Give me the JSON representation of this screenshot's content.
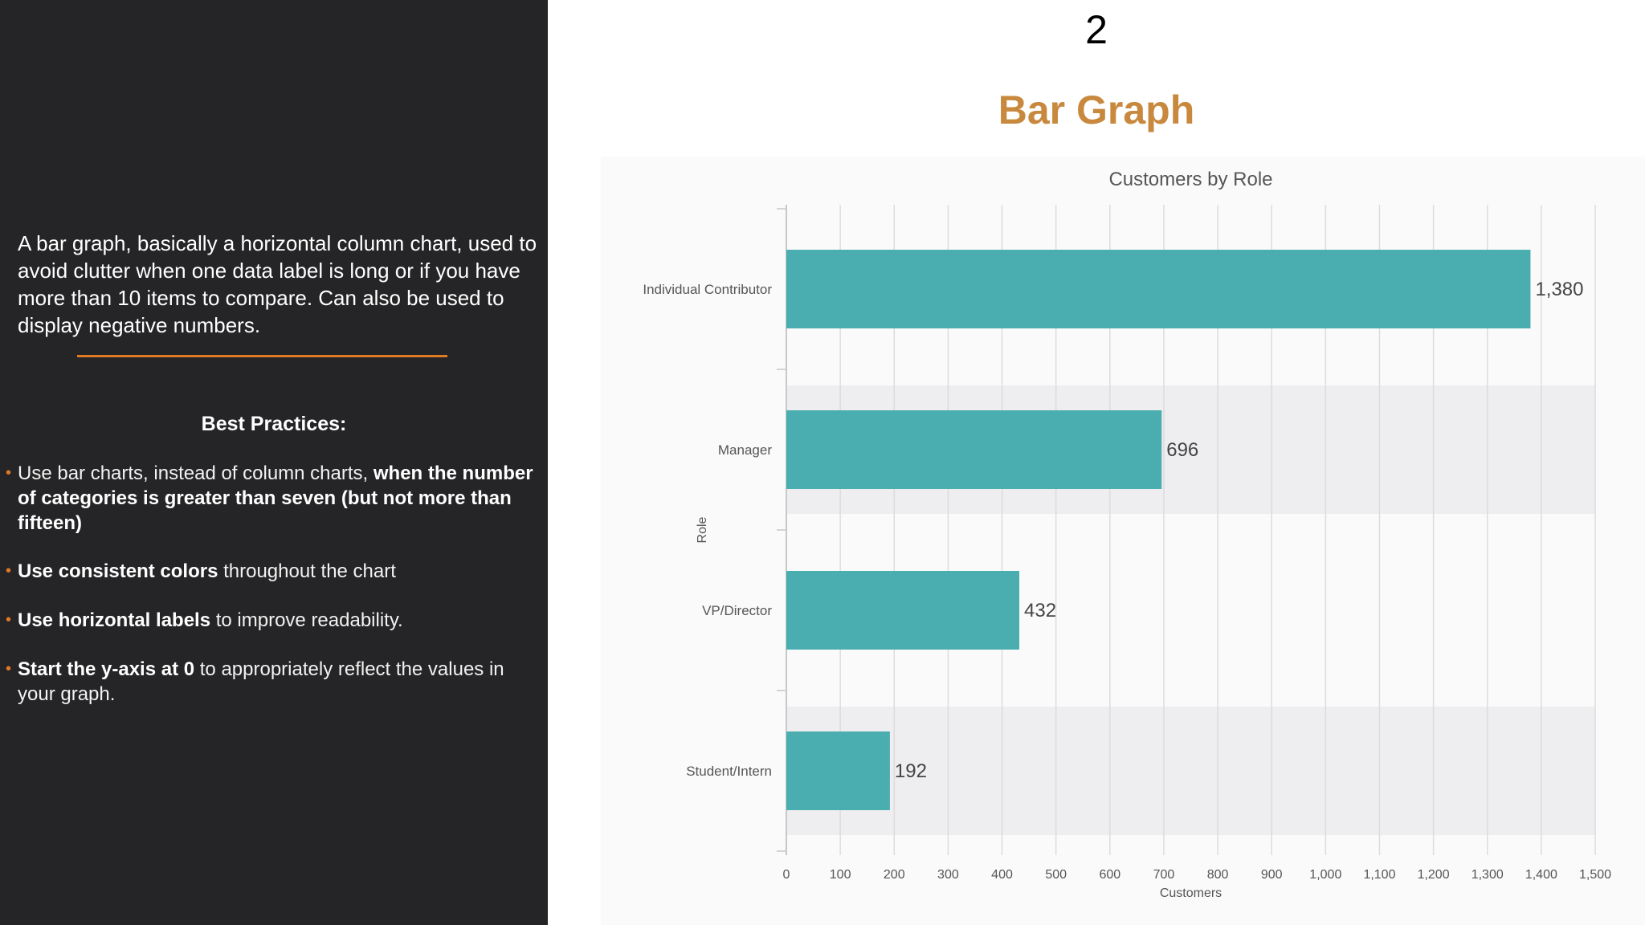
{
  "left_panel": {
    "intro": "A bar graph, basically a horizontal column chart, used to avoid clutter when one data label is long or if you have more than 10 items to compare. Can also be used to display negative numbers.",
    "best_practices_title": "Best Practices:",
    "bullets": [
      {
        "bold": "",
        "text": "Use bar charts, instead of column charts, ",
        "bold_after": "when the number of categories is greater than seven (but not more than fifteen)"
      },
      {
        "bold": "Use consistent colors",
        "text": " throughout the chart",
        "bold_after": ""
      },
      {
        "bold": "Use horizontal labels",
        "text": " to improve readability.",
        "bold_after": ""
      },
      {
        "bold": "Start the y-axis at 0",
        "text": " to appropriately reflect the values in your graph.",
        "bold_after": ""
      }
    ],
    "accent_color": "#e07b22"
  },
  "slide": {
    "number": "2",
    "title": "Bar Graph",
    "title_color": "#c8893e"
  },
  "chart_data": {
    "type": "bar",
    "orientation": "horizontal",
    "title": "Customers by Role",
    "xlabel": "Customers",
    "ylabel": "Role",
    "categories": [
      "Individual Contributor",
      "Manager",
      "VP/Director",
      "Student/Intern"
    ],
    "values": [
      1380,
      696,
      432,
      192
    ],
    "value_labels": [
      "1,380",
      "696",
      "432",
      "192"
    ],
    "xlim": [
      0,
      1500
    ],
    "ticks": [
      0,
      100,
      200,
      300,
      400,
      500,
      600,
      700,
      800,
      900,
      1000,
      1100,
      1200,
      1300,
      1400,
      1500
    ],
    "tick_labels": [
      "0",
      "100",
      "200",
      "300",
      "400",
      "500",
      "600",
      "700",
      "800",
      "900",
      "1,000",
      "1,100",
      "1,200",
      "1,300",
      "1,400",
      "1,500"
    ],
    "grid": true,
    "bar_color": "#4aadaf",
    "band_color": "#eeedef"
  }
}
